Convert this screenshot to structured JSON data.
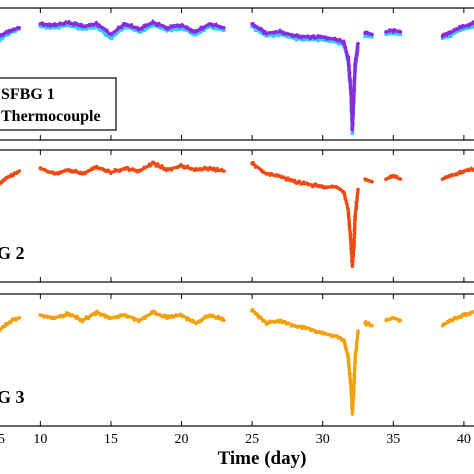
{
  "chart_data": [
    {
      "type": "scatter",
      "xlim": [
        7,
        41
      ],
      "ylim": [
        0,
        100
      ],
      "legend": {
        "placement": "left",
        "entries": [
          "SFBG 1",
          "Thermocouple"
        ]
      },
      "series": [
        {
          "name": "Thermocouple",
          "color": "#33ccf2",
          "segments": [
            {
              "x": [
                7,
                7.5,
                8,
                8.5
              ],
              "y": [
                75,
                79,
                82,
                84
              ]
            },
            {
              "x": [
                10,
                11,
                12,
                13,
                14,
                15,
                16,
                17,
                18,
                19,
                20,
                21,
                22,
                23
              ],
              "y": [
                86,
                85,
                87,
                84,
                86,
                77,
                86,
                82,
                87,
                83,
                85,
                80,
                86,
                83
              ]
            },
            {
              "x": [
                25,
                26,
                27,
                28,
                29,
                30,
                31,
                31.5,
                31.8,
                32,
                32.1,
                32.2,
                32.3,
                32.5
              ],
              "y": [
                86,
                79,
                80,
                77,
                76,
                76,
                74,
                72,
                60,
                35,
                5,
                30,
                55,
                70
              ]
            },
            {
              "x": [
                33,
                33.5
              ],
              "y": [
                79,
                78
              ]
            },
            {
              "x": [
                34.5,
                35,
                35.5
              ],
              "y": [
                80,
                81,
                80
              ]
            },
            {
              "x": [
                38.5,
                39,
                39.5,
                40,
                40.5,
                41
              ],
              "y": [
                77,
                79,
                82,
                84,
                86,
                87
              ]
            }
          ]
        },
        {
          "name": "SFBG 1",
          "color": "#8a2be2",
          "segments": [
            {
              "x": [
                7,
                7.5,
                8,
                8.5
              ],
              "y": [
                78,
                81,
                83,
                85
              ]
            },
            {
              "x": [
                10,
                11,
                12,
                13,
                14,
                15,
                16,
                17,
                18,
                19,
                20,
                21,
                22,
                23
              ],
              "y": [
                88,
                87,
                89,
                86,
                88,
                80,
                88,
                84,
                89,
                85,
                87,
                82,
                88,
                85
              ]
            },
            {
              "x": [
                25,
                26,
                27,
                28,
                29,
                30,
                31,
                31.5,
                31.8,
                32,
                32.1,
                32.2,
                32.3,
                32.5
              ],
              "y": [
                88,
                81,
                82,
                79,
                78,
                78,
                76,
                74,
                62,
                38,
                8,
                33,
                58,
                73
              ]
            },
            {
              "x": [
                33,
                33.5
              ],
              "y": [
                81,
                80
              ]
            },
            {
              "x": [
                34.5,
                35,
                35.5
              ],
              "y": [
                82,
                83,
                82
              ]
            },
            {
              "x": [
                38.5,
                39,
                39.5,
                40,
                40.5,
                41
              ],
              "y": [
                79,
                81,
                84,
                86,
                88,
                89
              ]
            }
          ]
        }
      ],
      "annotations": []
    },
    {
      "type": "scatter",
      "xlim": [
        7,
        41
      ],
      "ylim": [
        0,
        100
      ],
      "legend": {
        "placement": "bottom-left",
        "entries": [
          "G 2"
        ]
      },
      "series": [
        {
          "name": "G 2",
          "color": "#f04a12",
          "segments": [
            {
              "x": [
                7,
                7.5,
                8,
                8.5
              ],
              "y": [
                74,
                78,
                81,
                84
              ]
            },
            {
              "x": [
                10,
                11,
                12,
                13,
                14,
                15,
                16,
                17,
                18,
                19,
                20,
                21,
                22,
                23
              ],
              "y": [
                86,
                82,
                85,
                82,
                87,
                83,
                86,
                84,
                90,
                85,
                88,
                85,
                86,
                84
              ]
            },
            {
              "x": [
                25,
                26,
                27,
                28,
                29,
                30,
                31,
                31.5,
                31.8,
                32,
                32.1,
                32.2,
                32.3,
                32.5
              ],
              "y": [
                90,
                82,
                80,
                76,
                74,
                72,
                72,
                68,
                55,
                30,
                12,
                25,
                50,
                70
              ]
            },
            {
              "x": [
                33,
                33.5
              ],
              "y": [
                78,
                76
              ]
            },
            {
              "x": [
                34.5,
                35,
                35.5
              ],
              "y": [
                78,
                80,
                78
              ]
            },
            {
              "x": [
                38.5,
                39,
                39.5,
                40,
                40.5,
                41
              ],
              "y": [
                78,
                80,
                82,
                84,
                85,
                86
              ]
            }
          ]
        }
      ],
      "annotations": []
    },
    {
      "type": "scatter",
      "xlim": [
        7,
        41
      ],
      "ylim": [
        0,
        100
      ],
      "legend": {
        "placement": "bottom-left",
        "entries": [
          "G 3"
        ]
      },
      "series": [
        {
          "name": "G 3",
          "color": "#f5a00a",
          "segments": [
            {
              "x": [
                7,
                7.5,
                8,
                8.5
              ],
              "y": [
                72,
                76,
                80,
                82
              ]
            },
            {
              "x": [
                10,
                11,
                12,
                13,
                14,
                15,
                16,
                17,
                18,
                19,
                20,
                21,
                22,
                23
              ],
              "y": [
                84,
                82,
                85,
                80,
                86,
                82,
                84,
                80,
                86,
                82,
                84,
                78,
                84,
                80
              ]
            },
            {
              "x": [
                25,
                26,
                27,
                28,
                29,
                30,
                31,
                31.5,
                31.8,
                32,
                32.1,
                32.2,
                32.3,
                32.5
              ],
              "y": [
                88,
                78,
                80,
                76,
                74,
                70,
                68,
                65,
                52,
                30,
                10,
                28,
                52,
                72
              ]
            },
            {
              "x": [
                33,
                33.5
              ],
              "y": [
                78,
                76
              ]
            },
            {
              "x": [
                34.5,
                35,
                35.5
              ],
              "y": [
                80,
                82,
                80
              ]
            },
            {
              "x": [
                38.5,
                39,
                39.5,
                40,
                40.5,
                41
              ],
              "y": [
                76,
                80,
                82,
                84,
                86,
                87
              ]
            }
          ]
        }
      ],
      "annotations": []
    }
  ],
  "x_axis": {
    "label": "Time (day)",
    "ticks": [
      10,
      15,
      20,
      25,
      30,
      35,
      40
    ],
    "tick_labels": [
      "10",
      "15",
      "20",
      "25",
      "30",
      "35",
      "40"
    ],
    "partial_first_tick_label": "5"
  }
}
